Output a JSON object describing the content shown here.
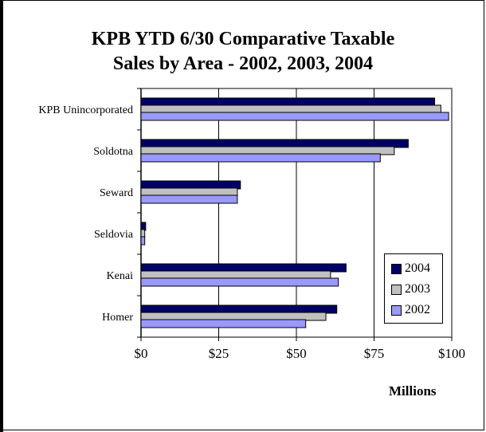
{
  "chart_data": {
    "type": "bar",
    "orientation": "horizontal",
    "title_line1": "KPB YTD 6/30 Comparative Taxable",
    "title_line2": "Sales by Area - 2002, 2003, 2004",
    "categories": [
      "KPB Unincorporated",
      "Soldotna",
      "Seward",
      "Seldovia",
      "Kenai",
      "Homer"
    ],
    "series": [
      {
        "name": "2004",
        "color": "#000066",
        "values": [
          94.5,
          86,
          32,
          1.5,
          66,
          63
        ]
      },
      {
        "name": "2003",
        "color": "#c0c0c0",
        "values": [
          96.5,
          81.5,
          31,
          1.2,
          61,
          59.5
        ]
      },
      {
        "name": "2002",
        "color": "#9999ff",
        "values": [
          99,
          77,
          31,
          1.2,
          63.5,
          53
        ]
      }
    ],
    "xlim": [
      0,
      100
    ],
    "xticks": [
      "$0",
      "$25",
      "$50",
      "$75",
      "$100"
    ],
    "xlabel": "Millions",
    "grid": true,
    "legend_position": "bottom-right"
  }
}
